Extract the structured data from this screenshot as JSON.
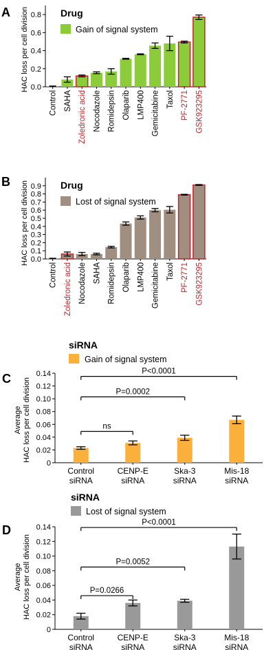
{
  "colors": {
    "green": "#8CCB3A",
    "brown": "#A08E80",
    "orange": "#FBB03B",
    "gray": "#999999",
    "highlight_red": "#C1272D"
  },
  "chart_data": [
    {
      "panel": "A",
      "type": "bar",
      "title": "Drug",
      "legend": "Gain of signal system",
      "legend_placement": "top-left",
      "ylabel": "HAC loss per cell division",
      "ylim": [
        0,
        0.9
      ],
      "yticks": [
        "0.0",
        "0.2",
        "0.4",
        "0.6",
        "0.8"
      ],
      "categories": [
        "Control",
        "SAHA",
        "Zoledronic acid",
        "Nocodazole",
        "Romidepsin",
        "Olaparib",
        "LMP400",
        "Gemicitabine",
        "Taxol",
        "PF-2771",
        "GSK923295"
      ],
      "values": [
        0.005,
        0.08,
        0.12,
        0.155,
        0.17,
        0.31,
        0.36,
        0.455,
        0.48,
        0.495,
        0.77
      ],
      "errors": [
        0.003,
        0.03,
        0.01,
        0.01,
        0.03,
        0.005,
        0.005,
        0.03,
        0.08,
        0.01,
        0.025
      ],
      "highlighted": [
        "Zoledronic acid",
        "PF-2771",
        "GSK923295"
      ]
    },
    {
      "panel": "B",
      "type": "bar",
      "title": "Drug",
      "legend": "Lost of signal system",
      "legend_placement": "top-left",
      "ylabel": "HAC loss per cell division",
      "ylim": [
        0,
        1.0
      ],
      "yticks": [
        "0.0",
        "0.1",
        "0.2",
        "0.3",
        "0.4",
        "0.5",
        "0.6",
        "0.7",
        "0.8",
        "0.9"
      ],
      "categories": [
        "Control",
        "Zoledronic acid",
        "Nocodazole",
        "SAHA",
        "Romidepsin",
        "Olaparib",
        "LMP400",
        "Gemicitabine",
        "Taxol",
        "PF-2771",
        "GSK923295"
      ],
      "values": [
        0.005,
        0.06,
        0.06,
        0.06,
        0.145,
        0.435,
        0.51,
        0.6,
        0.605,
        0.79,
        0.91
      ],
      "errors": [
        0.003,
        0.025,
        0.02,
        0.01,
        0.01,
        0.02,
        0.02,
        0.02,
        0.04,
        0.005,
        0.005
      ],
      "highlighted": [
        "Zoledronic acid",
        "PF-2771",
        "GSK923295"
      ]
    },
    {
      "panel": "C",
      "type": "bar",
      "title": "siRNA",
      "legend": "Gain of signal system",
      "legend_placement": "top-left",
      "ylabel_line1": "Average",
      "ylabel_line2": "HAC loss per cell division",
      "ylim": [
        0,
        0.14
      ],
      "yticks": [
        "0",
        "0.02",
        "0.04",
        "0.06",
        "0.08",
        "0.10",
        "0.12",
        "0.14"
      ],
      "categories": [
        [
          "Control",
          "siRNA"
        ],
        [
          "CENP-E",
          "siRNA"
        ],
        [
          "Ska-3",
          "siRNA"
        ],
        [
          "Mis-18",
          "siRNA"
        ]
      ],
      "values": [
        0.023,
        0.031,
        0.039,
        0.067
      ],
      "errors": [
        0.002,
        0.003,
        0.004,
        0.006
      ],
      "comparisons": [
        {
          "from": 0,
          "to": 3,
          "label": "P<0.0001",
          "y": 0.135
        },
        {
          "from": 0,
          "to": 2,
          "label": "P=0.0002",
          "y": 0.103
        },
        {
          "from": 0,
          "to": 1,
          "label": "ns",
          "y": 0.049
        }
      ]
    },
    {
      "panel": "D",
      "type": "bar",
      "title": "siRNA",
      "legend": "Lost of signal system",
      "legend_placement": "top-left",
      "ylabel_line1": "Average",
      "ylabel_line2": "HAC loss per cell division",
      "ylim": [
        0,
        0.14
      ],
      "yticks": [
        "0",
        "0.02",
        "0.04",
        "0.06",
        "0.08",
        "0.10",
        "0.12",
        "0.14"
      ],
      "categories": [
        [
          "Control",
          "siRNA"
        ],
        [
          "CENP-E",
          "siRNA"
        ],
        [
          "Ska-3",
          "siRNA"
        ],
        [
          "Mis-18",
          "siRNA"
        ]
      ],
      "values": [
        0.018,
        0.036,
        0.039,
        0.113
      ],
      "errors": [
        0.004,
        0.004,
        0.002,
        0.017
      ],
      "comparisons": [
        {
          "from": 0,
          "to": 3,
          "label": "P<0.0001",
          "y": 0.139
        },
        {
          "from": 0,
          "to": 2,
          "label": "P=0.0052",
          "y": 0.085
        },
        {
          "from": 0,
          "to": 1,
          "label": "P=0.0266",
          "y": 0.046
        }
      ]
    }
  ]
}
